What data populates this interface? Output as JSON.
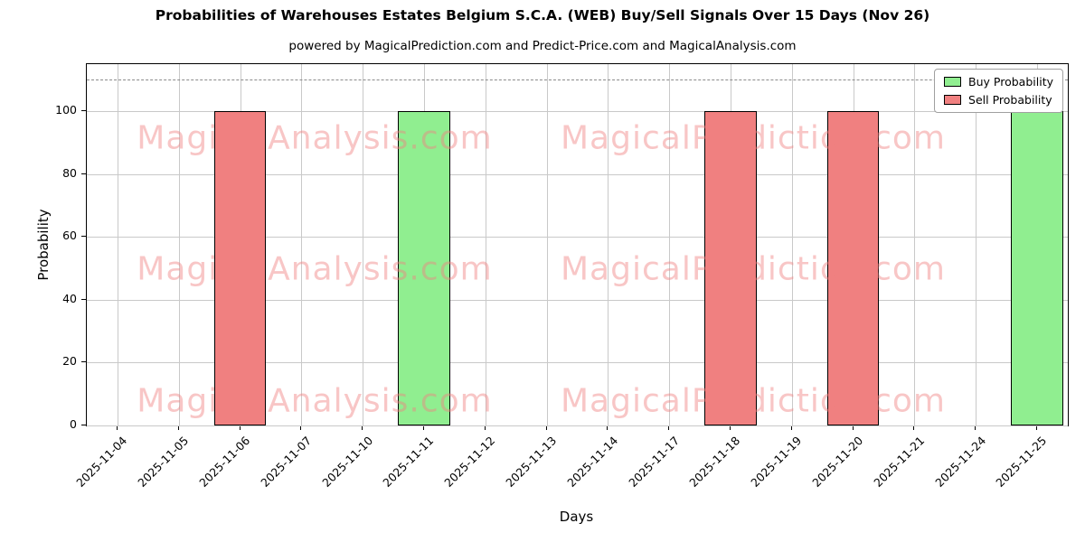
{
  "chart_data": {
    "type": "bar",
    "title": "Probabilities of Warehouses Estates Belgium S.C.A. (WEB) Buy/Sell Signals Over 15 Days (Nov 26)",
    "subtitle": "powered by MagicalPrediction.com and Predict-Price.com and MagicalAnalysis.com",
    "xlabel": "Days",
    "ylabel": "Probability",
    "categories": [
      "2025-11-04",
      "2025-11-05",
      "2025-11-06",
      "2025-11-07",
      "2025-11-10",
      "2025-11-11",
      "2025-11-12",
      "2025-11-13",
      "2025-11-14",
      "2025-11-17",
      "2025-11-18",
      "2025-11-19",
      "2025-11-20",
      "2025-11-21",
      "2025-11-24",
      "2025-11-25"
    ],
    "series": [
      {
        "name": "Buy Probability",
        "color": "#90ee90",
        "values": [
          0,
          0,
          0,
          0,
          0,
          100,
          0,
          0,
          0,
          0,
          0,
          0,
          0,
          0,
          0,
          100
        ]
      },
      {
        "name": "Sell Probability",
        "color": "#f08080",
        "values": [
          0,
          0,
          100,
          0,
          0,
          0,
          0,
          0,
          0,
          0,
          100,
          0,
          100,
          0,
          0,
          0
        ]
      }
    ],
    "ylim": [
      0,
      115
    ],
    "yticks": [
      0,
      20,
      40,
      60,
      80,
      100
    ],
    "dashed_line_y": 110,
    "grid": true,
    "legend_position": "top-right",
    "bar_edge_color": "#000000",
    "watermarks": {
      "left": "MagicalAnalysis.com",
      "right": "MagicalPrediction.com"
    }
  }
}
